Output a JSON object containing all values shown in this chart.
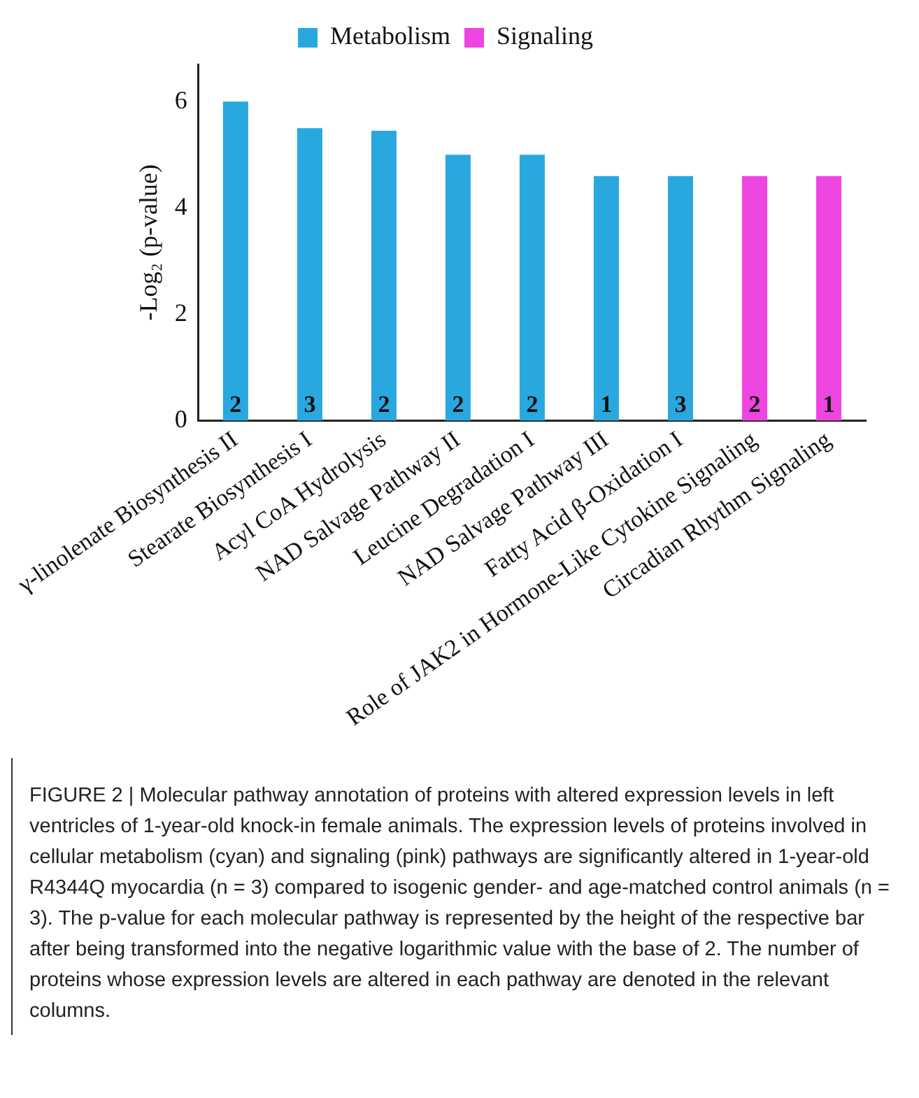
{
  "chart_data": {
    "type": "bar",
    "ylabel": "-Log₂ (p-value)",
    "categories": [
      "γ-linolenate Biosynthesis II",
      "Stearate Biosynthesis I",
      "Acyl CoA Hydrolysis",
      "NAD Salvage Pathway II",
      "Leucine Degradation I",
      "NAD Salvage Pathway III",
      "Fatty Acid β-Oxidation I",
      "Role of JAK2 in Hormone-Like Cytokine Signaling",
      "Circadian Rhythm Signaling"
    ],
    "series": [
      {
        "name": "Metabolism",
        "color": "#29a8e0",
        "values": [
          6.0,
          5.5,
          5.45,
          5.0,
          5.0,
          4.6,
          4.6,
          null,
          null
        ]
      },
      {
        "name": "Signaling",
        "color": "#ee44e0",
        "values": [
          null,
          null,
          null,
          null,
          null,
          null,
          null,
          4.6,
          4.6
        ]
      }
    ],
    "ylim": [
      0,
      6.7
    ],
    "yticks": [
      0,
      2,
      4,
      6
    ],
    "grid": false,
    "legend": "top",
    "annotations": [
      {
        "text": "2",
        "x": "γ-linolenate Biosynthesis II",
        "y": 0
      },
      {
        "text": "3",
        "x": "Stearate Biosynthesis I",
        "y": 0
      },
      {
        "text": "2",
        "x": "Acyl CoA Hydrolysis",
        "y": 0
      },
      {
        "text": "2",
        "x": "NAD Salvage Pathway II",
        "y": 0
      },
      {
        "text": "2",
        "x": "Leucine Degradation I",
        "y": 0
      },
      {
        "text": "1",
        "x": "NAD Salvage Pathway III",
        "y": 0
      },
      {
        "text": "3",
        "x": "Fatty Acid β-Oxidation I",
        "y": 0
      },
      {
        "text": "2",
        "x": "Role of JAK2 in Hormone-Like Cytokine Signaling",
        "y": 0
      },
      {
        "text": "1",
        "x": "Circadian Rhythm Signaling",
        "y": 0
      },
      "FIGURE 2 | Molecular pathway annotation of proteins with altered expression levels in left ventricles of 1-year-old knock-in female animals. The expression levels of proteins involved in cellular metabolism (cyan) and signaling (pink) pathways are significantly altered in 1-year-old R4344Q myocardia (n = 3) compared to isogenic gender- and age-matched control animals (n = 3). The p-value for each molecular pathway is represented by the height of the respective bar after being transformed into the negative logarithmic value with the base of 2. The number of proteins whose expression levels are altered in each pathway are denoted in the relevant columns."
    ]
  }
}
